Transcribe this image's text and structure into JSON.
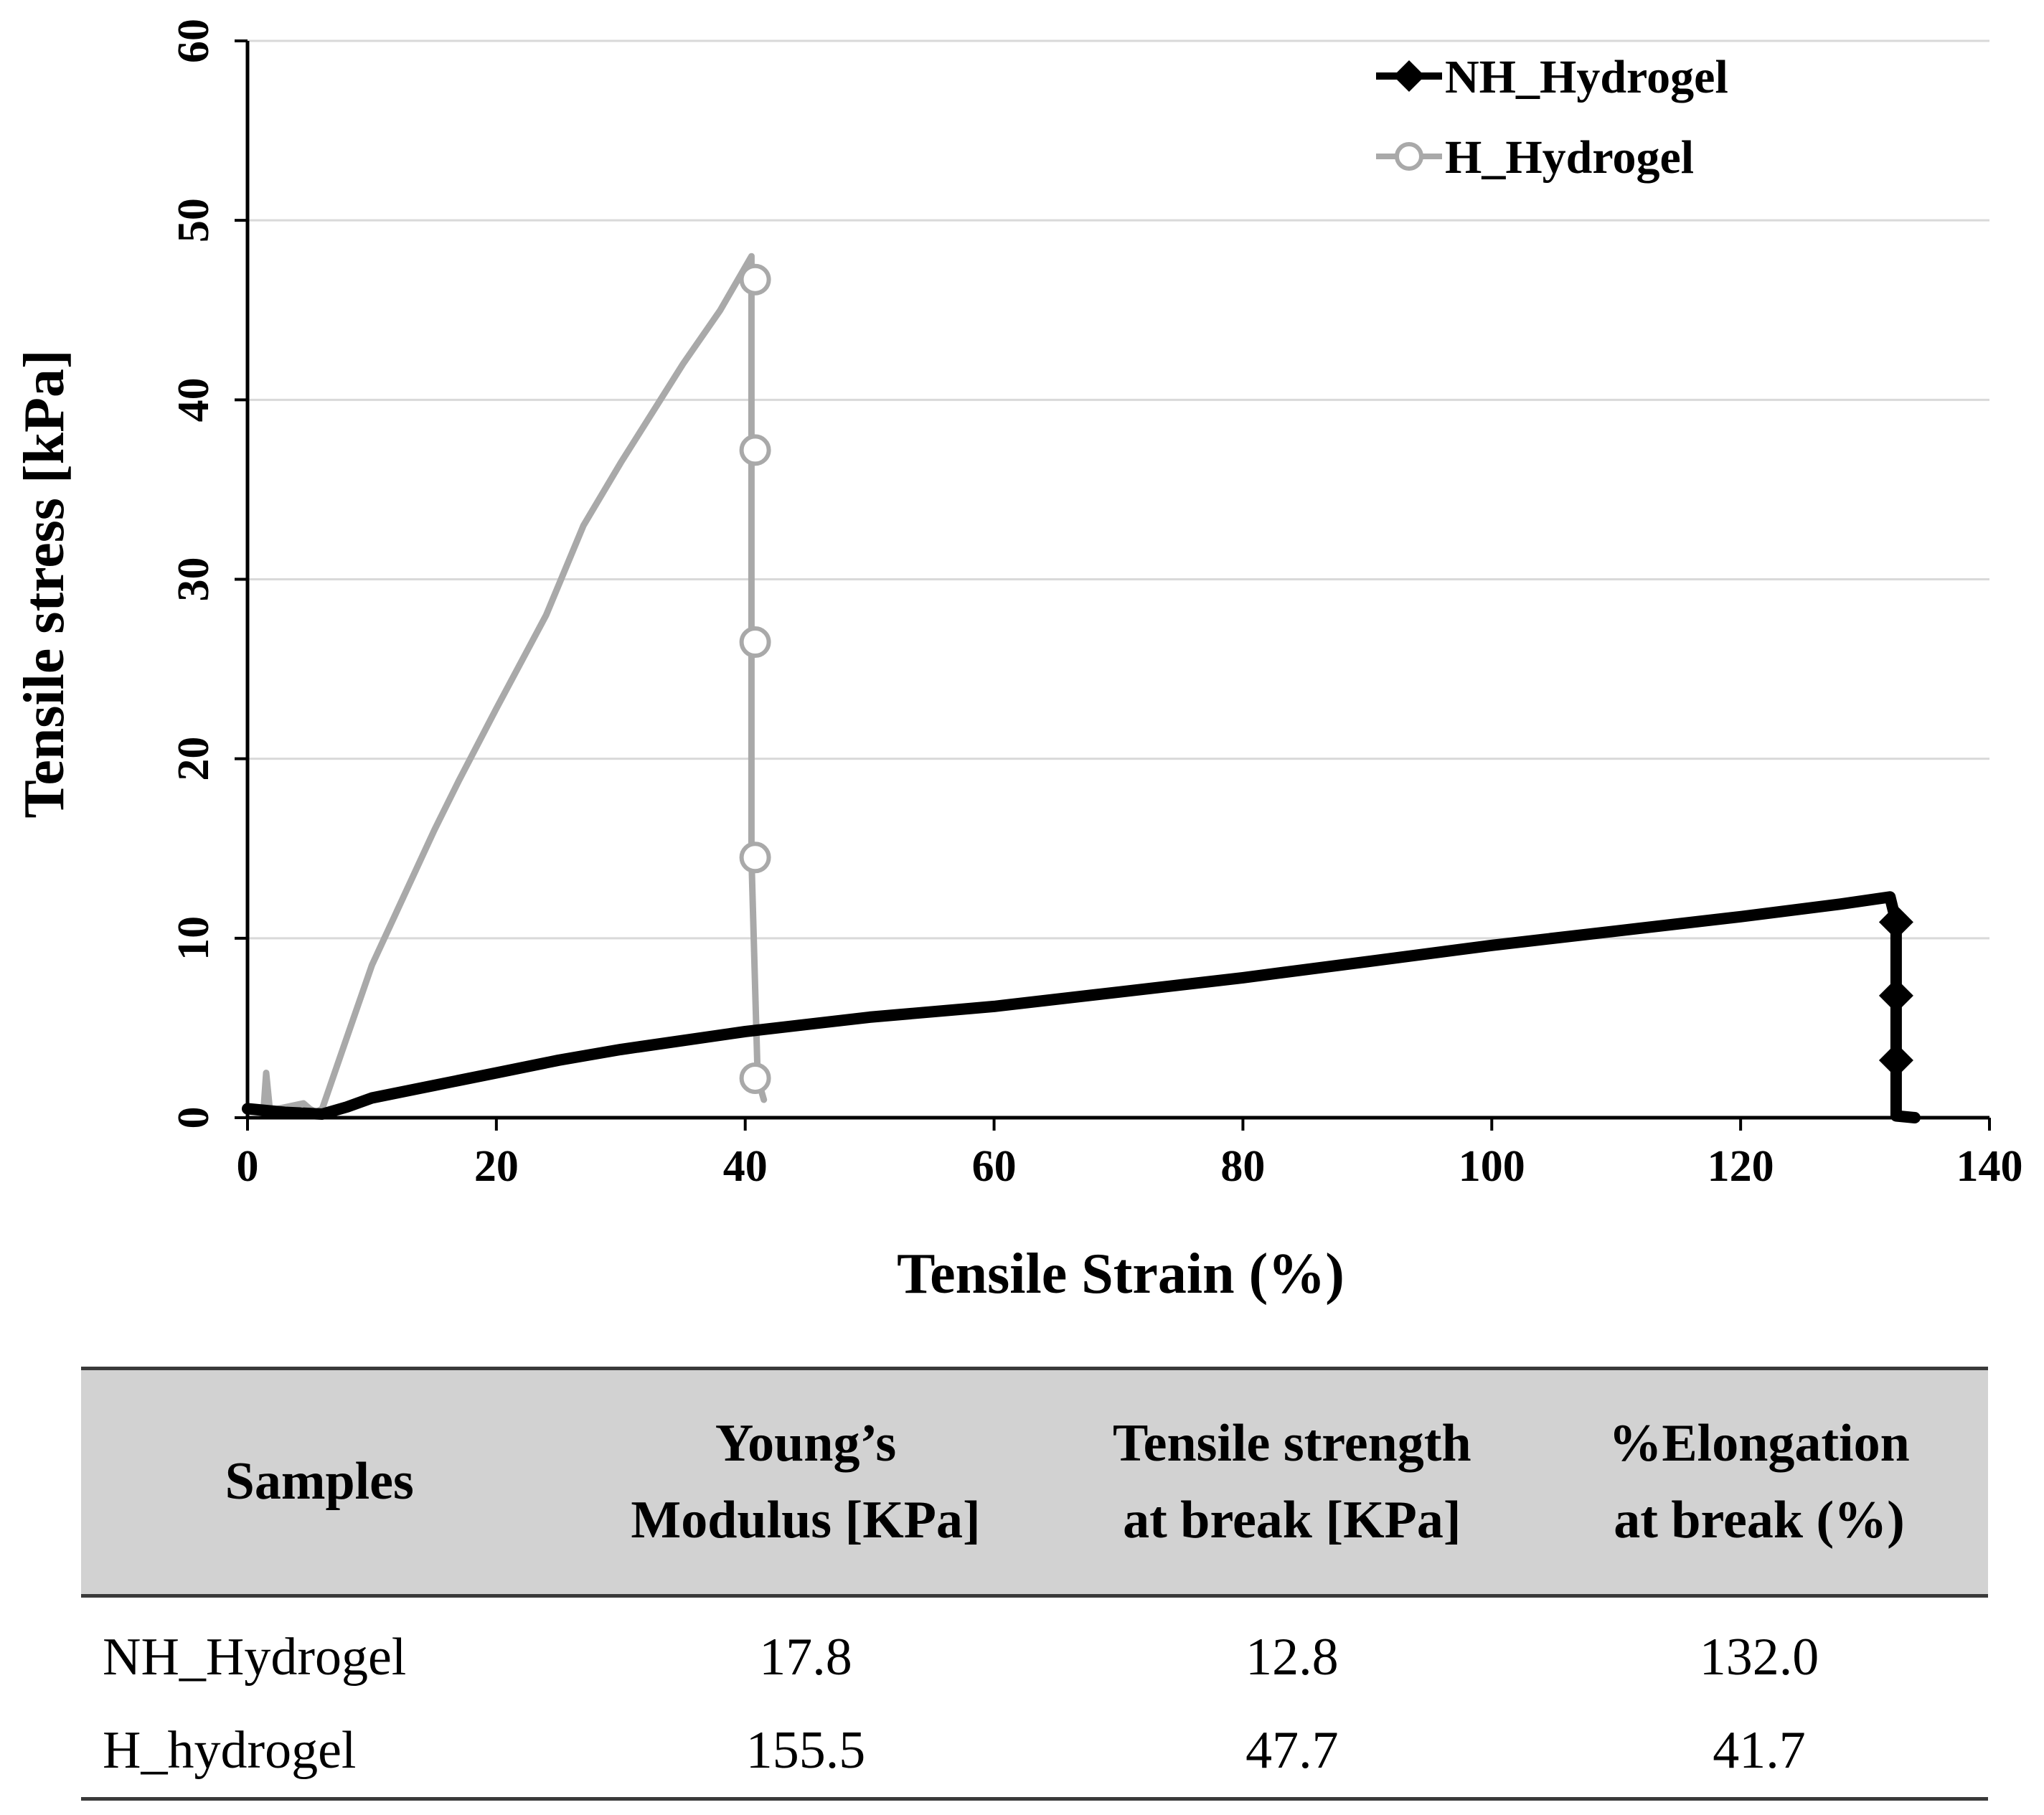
{
  "chart_data": {
    "type": "line",
    "title": "",
    "xlabel": "Tensile Strain (%)",
    "ylabel": "Tensile stress [kPa]",
    "xlim": [
      0,
      140
    ],
    "ylim": [
      0,
      60
    ],
    "xticks": [
      "0",
      "20",
      "40",
      "60",
      "80",
      "100",
      "120",
      "140"
    ],
    "yticks": [
      "0",
      "10",
      "20",
      "30",
      "40",
      "50",
      "60"
    ],
    "grid": "horizontal",
    "legend_position": "top-right",
    "series": [
      {
        "name": "NH_Hydrogel",
        "color": "#000000",
        "marker": "diamond",
        "x": [
          0,
          3,
          6,
          8,
          10,
          15,
          20,
          25,
          30,
          40,
          50,
          60,
          70,
          80,
          90,
          100,
          110,
          120,
          128,
          132,
          132.5,
          132.5,
          132.5,
          132.5,
          132.5,
          134
        ],
        "y": [
          0.5,
          0.3,
          0.2,
          0.6,
          1.1,
          1.8,
          2.5,
          3.2,
          3.8,
          4.8,
          5.6,
          6.2,
          7.0,
          7.8,
          8.7,
          9.6,
          10.4,
          11.2,
          11.9,
          12.3,
          10.9,
          6.8,
          3.2,
          0.5,
          0.1,
          0
        ]
      },
      {
        "name": "H_Hydrogel",
        "color": "#a9a9a9",
        "marker": "circle",
        "x": [
          0,
          1.3,
          1.5,
          1.8,
          4.5,
          5,
          5.5,
          6,
          8,
          10,
          12,
          15,
          17,
          20,
          24,
          27,
          30,
          35,
          38,
          40.5,
          40.5,
          40.5,
          40.5,
          40.5,
          41,
          41.5
        ],
        "y": [
          0.4,
          0.5,
          2.5,
          0.4,
          0.8,
          0.5,
          0.3,
          0.5,
          4.5,
          8.5,
          11.5,
          16.0,
          18.8,
          22.8,
          28.0,
          33.0,
          36.5,
          42.0,
          45.0,
          48.0,
          46.7,
          37.2,
          26.5,
          14.5,
          2.2,
          1.0
        ]
      }
    ],
    "markers": [
      {
        "series": "NH_Hydrogel",
        "x": 132.5,
        "y": [
          10.9,
          6.8,
          3.2
        ]
      },
      {
        "series": "H_Hydrogel",
        "x": 40.8,
        "y": [
          46.7,
          37.2,
          26.5,
          14.5,
          2.2
        ]
      }
    ]
  },
  "table": {
    "headers": [
      [
        "Samples"
      ],
      [
        "Young’s",
        "Modulus [KPa]"
      ],
      [
        "Tensile strength",
        "at break [KPa]"
      ],
      [
        "%Elongation",
        "at break (%)"
      ]
    ],
    "rows": [
      [
        "NH_Hydrogel",
        "17.8",
        "12.8",
        "132.0"
      ],
      [
        "H_hydrogel",
        "155.5",
        "47.7",
        "41.7"
      ]
    ]
  }
}
